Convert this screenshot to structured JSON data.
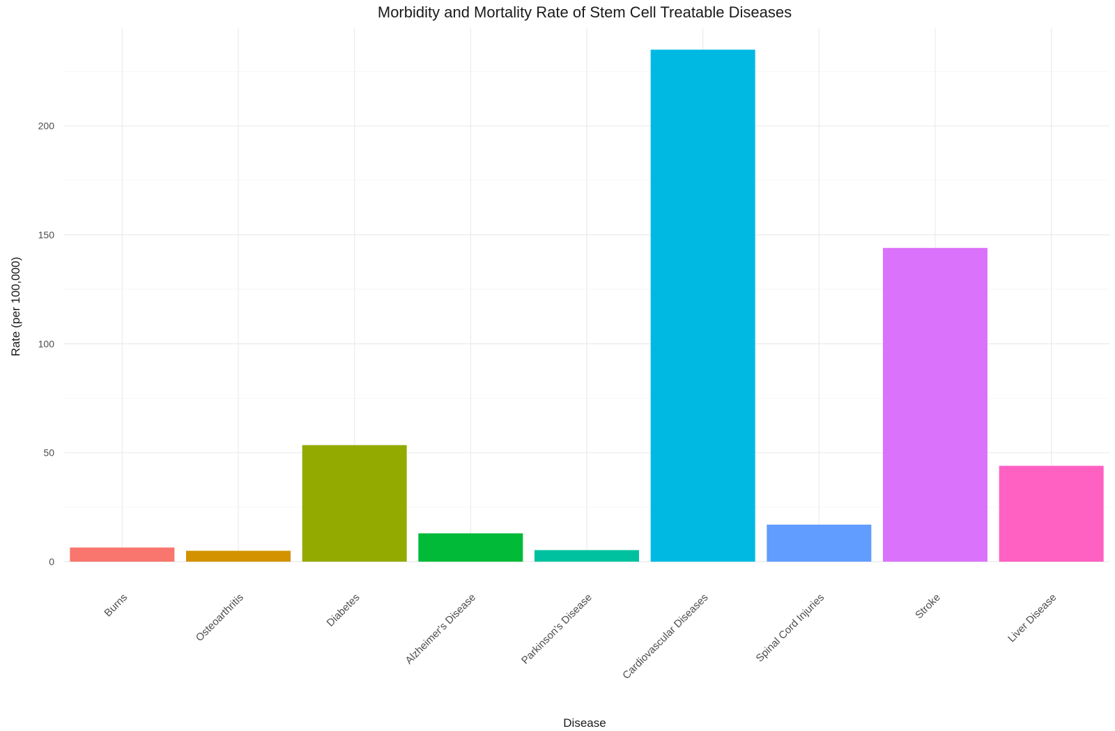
{
  "chart_data": {
    "type": "bar",
    "title": "Morbidity and Mortality Rate of Stem Cell Treatable Diseases",
    "xlabel": "Disease",
    "ylabel": "Rate (per 100,000)",
    "categories": [
      "Burns",
      "Osteoarthritis",
      "Diabetes",
      "Alzheimer's Disease",
      "Parkinson's Disease",
      "Cardiovascular Diseases",
      "Spinal Cord Injuries",
      "Stroke",
      "Liver Disease"
    ],
    "values": [
      6.5,
      5.0,
      53.5,
      13.0,
      5.3,
      235.0,
      17.0,
      144.0,
      44.0
    ],
    "colors": [
      "#F8766D",
      "#D39200",
      "#93AA00",
      "#00BA38",
      "#00C19F",
      "#00B9E3",
      "#619CFF",
      "#DB72FB",
      "#FF61C3"
    ],
    "ylim": [
      0,
      245
    ],
    "yticks": [
      0,
      50,
      100,
      150,
      200
    ],
    "grid": true,
    "legend": "none"
  }
}
